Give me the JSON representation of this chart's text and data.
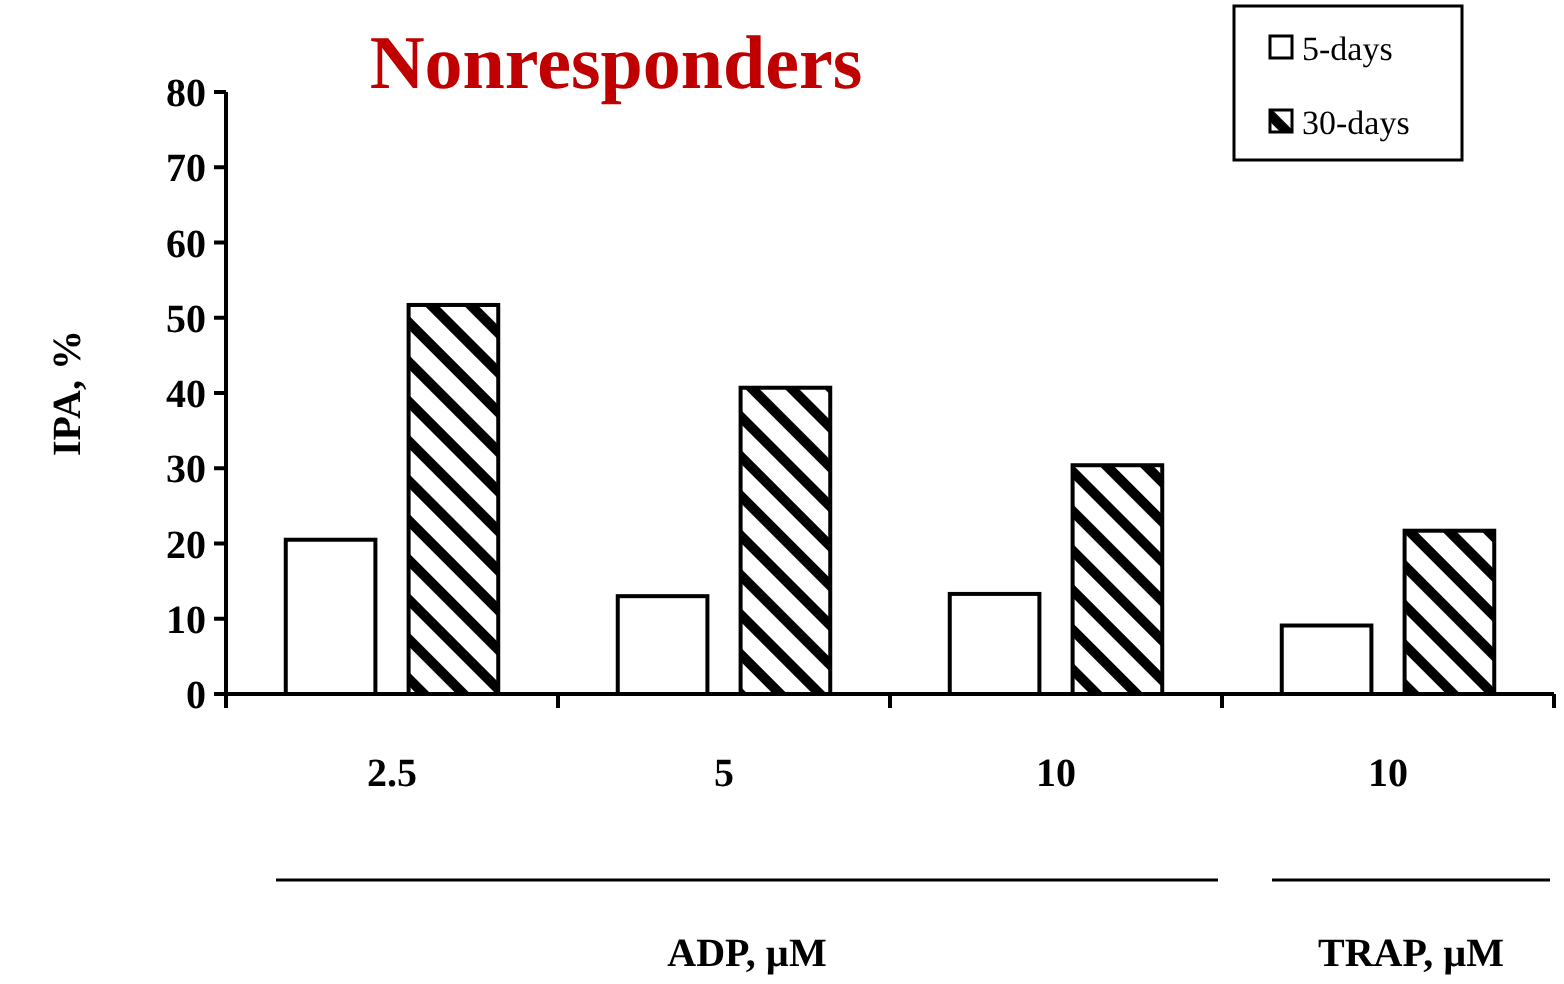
{
  "chart_data": {
    "type": "bar",
    "title": "Nonresponders",
    "ylabel": "IPA, %",
    "categories": [
      "2.5",
      "5",
      "10",
      "10"
    ],
    "series": [
      {
        "name": "5-days",
        "color": "#ffffff",
        "values": [
          20.5,
          13,
          13.3,
          9.1
        ]
      },
      {
        "name": "30-days",
        "color": "#000000",
        "values": [
          51.7,
          40.7,
          30.4,
          21.7
        ]
      }
    ],
    "ylim": [
      0,
      80
    ],
    "yticks": [
      0,
      10,
      20,
      30,
      40,
      50,
      60,
      70,
      80
    ],
    "legend": "top right",
    "annotations": [
      "ADP, µM",
      "TRAP, µM"
    ]
  }
}
